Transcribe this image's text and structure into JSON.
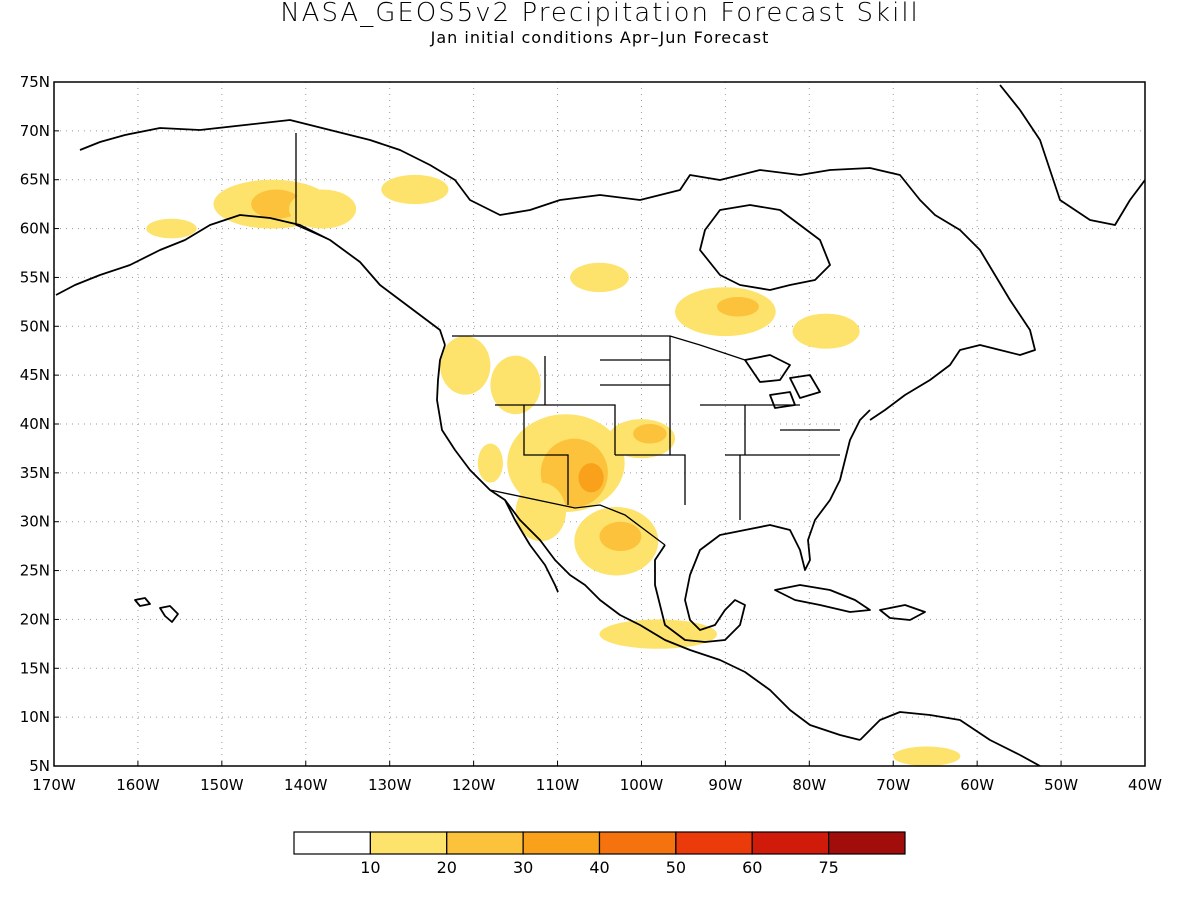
{
  "title": "NASA_GEOS5v2 Precipitation Forecast Skill",
  "subtitle": "Jan initial conditions  Apr–Jun Forecast",
  "axes": {
    "lat_labels": [
      "75N",
      "70N",
      "65N",
      "60N",
      "55N",
      "50N",
      "45N",
      "40N",
      "35N",
      "30N",
      "25N",
      "20N",
      "15N",
      "10N",
      "5N"
    ],
    "lon_labels": [
      "170W",
      "160W",
      "150W",
      "140W",
      "130W",
      "120W",
      "110W",
      "100W",
      "90W",
      "80W",
      "70W",
      "60W",
      "50W",
      "40W"
    ],
    "lat_range": [
      5,
      75
    ],
    "lon_range": [
      -170,
      -40
    ],
    "grid": "dotted"
  },
  "colorbar": {
    "labels": [
      "10",
      "20",
      "30",
      "40",
      "50",
      "60",
      "75"
    ],
    "colors": [
      "#ffffff",
      "#fde36b",
      "#fcc23c",
      "#f9a11b",
      "#f4730e",
      "#ec3b0b",
      "#d01b0b",
      "#a10d0b"
    ]
  },
  "skill_regions": [
    {
      "level": 1,
      "lon": -144,
      "lat": 62.5,
      "rlon": 7,
      "rlat": 2.5
    },
    {
      "level": 2,
      "lon": -143.5,
      "lat": 62.5,
      "rlon": 3,
      "rlat": 1.5
    },
    {
      "level": 1,
      "lon": -138,
      "lat": 62,
      "rlon": 4,
      "rlat": 2
    },
    {
      "level": 1,
      "lon": -127,
      "lat": 64,
      "rlon": 4,
      "rlat": 1.5
    },
    {
      "level": 1,
      "lon": -156,
      "lat": 60,
      "rlon": 3,
      "rlat": 1
    },
    {
      "level": 1,
      "lon": -105,
      "lat": 55,
      "rlon": 3.5,
      "rlat": 1.5
    },
    {
      "level": 1,
      "lon": -90,
      "lat": 51.5,
      "rlon": 6,
      "rlat": 2.5
    },
    {
      "level": 2,
      "lon": -88.5,
      "lat": 52,
      "rlon": 2.5,
      "rlat": 1
    },
    {
      "level": 1,
      "lon": -78,
      "lat": 49.5,
      "rlon": 4,
      "rlat": 1.8
    },
    {
      "level": 1,
      "lon": -121,
      "lat": 46,
      "rlon": 3,
      "rlat": 3
    },
    {
      "level": 1,
      "lon": -115,
      "lat": 44,
      "rlon": 3,
      "rlat": 3
    },
    {
      "level": 1,
      "lon": -109,
      "lat": 36,
      "rlon": 7,
      "rlat": 5
    },
    {
      "level": 2,
      "lon": -108,
      "lat": 35,
      "rlon": 4,
      "rlat": 3.5
    },
    {
      "level": 3,
      "lon": -106,
      "lat": 34.5,
      "rlon": 1.5,
      "rlat": 1.5
    },
    {
      "level": 1,
      "lon": -100,
      "lat": 38.5,
      "rlon": 4,
      "rlat": 2
    },
    {
      "level": 2,
      "lon": -99,
      "lat": 39,
      "rlon": 2,
      "rlat": 1
    },
    {
      "level": 1,
      "lon": -103,
      "lat": 28,
      "rlon": 5,
      "rlat": 3.5
    },
    {
      "level": 2,
      "lon": -102.5,
      "lat": 28.5,
      "rlon": 2.5,
      "rlat": 1.5
    },
    {
      "level": 1,
      "lon": -112,
      "lat": 31,
      "rlon": 3,
      "rlat": 3
    },
    {
      "level": 1,
      "lon": -98,
      "lat": 18.5,
      "rlon": 7,
      "rlat": 1.5
    },
    {
      "level": 1,
      "lon": -118,
      "lat": 36,
      "rlon": 1.5,
      "rlat": 2
    },
    {
      "level": 1,
      "lon": -66,
      "lat": 6,
      "rlon": 4,
      "rlat": 1
    }
  ]
}
